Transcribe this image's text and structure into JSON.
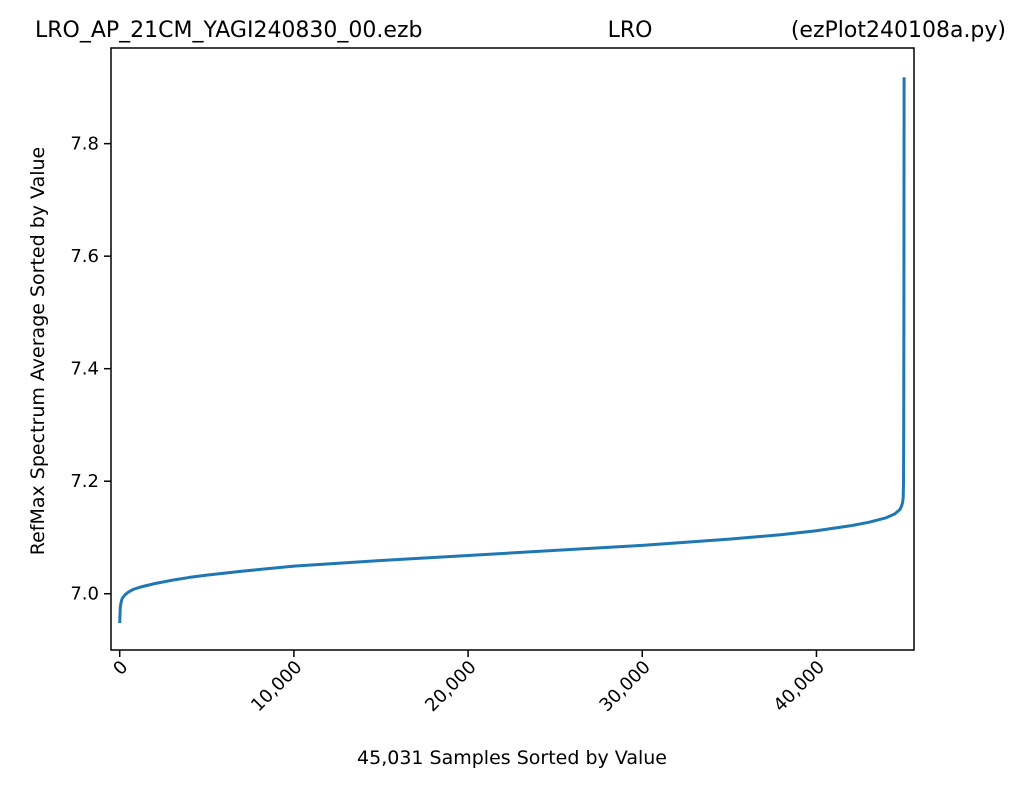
{
  "title": {
    "left": "LRO_AP_21CM_YAGI240830_00.ezb",
    "center": "LRO",
    "right": "(ezPlot240108a.py)"
  },
  "chart_data": {
    "type": "line",
    "xlabel": "45,031 Samples Sorted by Value",
    "ylabel": "RefMax Spectrum Average Sorted by Value",
    "xlim": [
      -500,
      45600
    ],
    "ylim": [
      6.9,
      7.97
    ],
    "x_ticks": [
      0,
      10000,
      20000,
      30000,
      40000
    ],
    "x_tick_labels": [
      "0",
      "10,000",
      "20,000",
      "30,000",
      "40,000"
    ],
    "y_ticks": [
      7.0,
      7.2,
      7.4,
      7.6,
      7.8
    ],
    "y_tick_labels": [
      "7.0",
      "7.2",
      "7.4",
      "7.6",
      "7.8"
    ],
    "grid": false,
    "legend": "none",
    "series": [
      {
        "color": "#1f77b4",
        "x": [
          0,
          30,
          80,
          150,
          300,
          500,
          800,
          1200,
          2000,
          3000,
          4000,
          5000,
          7000,
          10000,
          15000,
          20000,
          25000,
          30000,
          35000,
          38000,
          40000,
          42000,
          43000,
          44000,
          44500,
          44800,
          44900,
          44950,
          44980,
          45000,
          45010,
          45020,
          45025,
          45031
        ],
        "y": [
          6.948,
          6.975,
          6.985,
          6.992,
          6.998,
          7.003,
          7.008,
          7.012,
          7.018,
          7.024,
          7.029,
          7.033,
          7.04,
          7.049,
          7.059,
          7.068,
          7.077,
          7.086,
          7.097,
          7.105,
          7.112,
          7.121,
          7.127,
          7.135,
          7.142,
          7.15,
          7.157,
          7.163,
          7.172,
          7.2,
          7.3,
          7.5,
          7.7,
          7.918
        ]
      }
    ]
  }
}
